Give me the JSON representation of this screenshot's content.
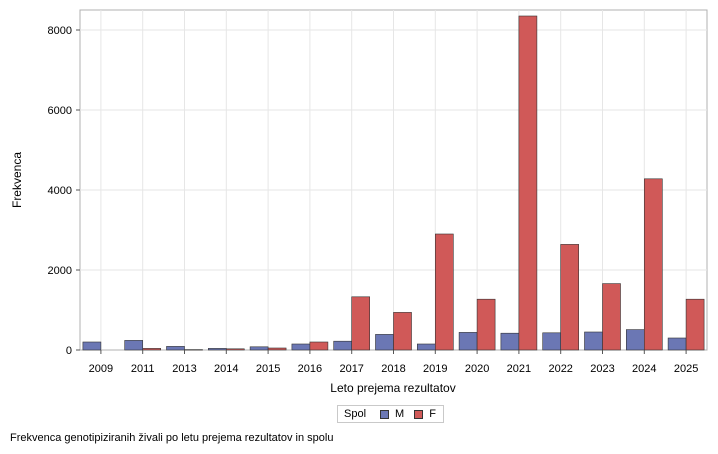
{
  "chart_data": {
    "type": "bar",
    "ylabel": "Frekvenca",
    "xlabel": "Leto prejema rezultatov",
    "categories": [
      "2009",
      "2011",
      "2013",
      "2014",
      "2015",
      "2016",
      "2017",
      "2018",
      "2019",
      "2020",
      "2021",
      "2022",
      "2023",
      "2024",
      "2025"
    ],
    "series": [
      {
        "name": "M",
        "color": "#6b77b4",
        "values": [
          200,
          240,
          90,
          40,
          80,
          150,
          220,
          390,
          150,
          440,
          420,
          430,
          450,
          510,
          300
        ]
      },
      {
        "name": "F",
        "color": "#d05958",
        "values": [
          0,
          40,
          10,
          30,
          50,
          200,
          1330,
          940,
          2900,
          1270,
          8350,
          2640,
          1660,
          4280,
          1270
        ]
      }
    ],
    "ylim": [
      0,
      8500
    ],
    "yticks": [
      0,
      2000,
      4000,
      6000,
      8000
    ],
    "grid": true,
    "legend_position": "bottom"
  },
  "legend": {
    "title": "Spol",
    "items": [
      {
        "label": "M",
        "color": "#6b77b4"
      },
      {
        "label": "F",
        "color": "#d05958"
      }
    ]
  },
  "footnote": "Frekvenca genotipiziranih živali po letu prejema rezultatov in spolu"
}
